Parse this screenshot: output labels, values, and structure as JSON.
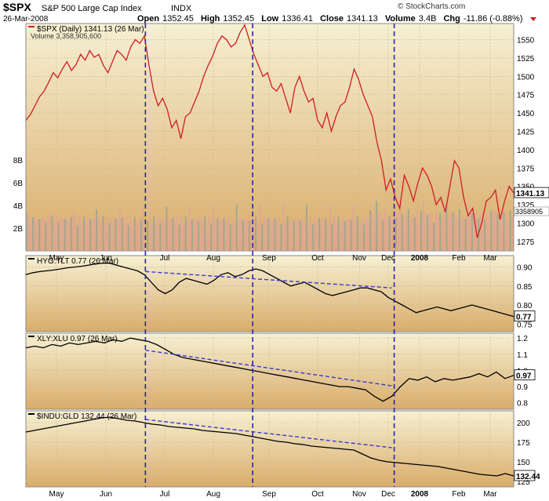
{
  "header": {
    "symbol": "$SPX",
    "name": "S&P 500 Large Cap Index",
    "exchange": "INDX",
    "date": "26-Mar-2008",
    "open_label": "Open",
    "open": "1352.45",
    "high_label": "High",
    "high": "1352.45",
    "low_label": "Low",
    "low": "1336.41",
    "close_label": "Close",
    "close": "1341.13",
    "volume_label": "Volume",
    "volume": "3.4B",
    "chg_label": "Chg",
    "chg": "-11.86 (-0.88%)",
    "watermark": "© StockCharts.com"
  },
  "colors": {
    "panel_bg_top": "#f6f0d3",
    "panel_bg_bottom": "#d9ac6a",
    "price_line": "#d01c24",
    "ratio_line": "#000000",
    "trend_line": "#3a3ad0",
    "vertical_marker": "#2a20b8",
    "vol_up": "#9aa39a",
    "vol_down": "#e0a59a"
  },
  "x_axis": {
    "months": [
      "May",
      "Jun",
      "Jul",
      "Aug",
      "Sep",
      "Oct",
      "Nov",
      "Dec",
      "2008",
      "Feb",
      "Mar"
    ]
  },
  "chart_data": [
    {
      "type": "line",
      "title": "$SPX (Daily) 1341.13 (26 Mar)",
      "volume_legend": "Volume 3,358,905,600",
      "last_value_label": "1341.13",
      "volume_last_label": "3358905",
      "ylim": [
        1262,
        1572
      ],
      "yticks": [
        1275,
        1300,
        1325,
        1350,
        1375,
        1400,
        1425,
        1450,
        1475,
        1500,
        1525,
        1550
      ],
      "volume_ticks": [
        "2B",
        "4B",
        "6B",
        "8B"
      ],
      "volume_tick_values": [
        2,
        4,
        6,
        8
      ],
      "volume_lim": [
        0,
        10.5
      ],
      "series": [
        {
          "name": "$SPX",
          "values": [
            1440,
            1448,
            1460,
            1472,
            1480,
            1492,
            1505,
            1498,
            1510,
            1520,
            1508,
            1516,
            1530,
            1522,
            1535,
            1526,
            1530,
            1515,
            1505,
            1520,
            1535,
            1530,
            1522,
            1540,
            1550,
            1545,
            1555,
            1515,
            1480,
            1460,
            1470,
            1455,
            1430,
            1440,
            1415,
            1445,
            1450,
            1465,
            1480,
            1500,
            1515,
            1528,
            1545,
            1555,
            1550,
            1540,
            1545,
            1560,
            1570,
            1550,
            1530,
            1515,
            1500,
            1505,
            1485,
            1480,
            1490,
            1470,
            1450,
            1485,
            1500,
            1480,
            1465,
            1470,
            1440,
            1430,
            1450,
            1425,
            1445,
            1460,
            1465,
            1485,
            1510,
            1495,
            1475,
            1460,
            1445,
            1410,
            1385,
            1345,
            1360,
            1335,
            1320,
            1365,
            1350,
            1330,
            1355,
            1375,
            1365,
            1350,
            1325,
            1335,
            1315,
            1350,
            1385,
            1375,
            1335,
            1310,
            1320,
            1280,
            1300,
            1330,
            1335,
            1345,
            1305,
            1330,
            1350,
            1341
          ]
        }
      ]
    },
    {
      "type": "line",
      "title": "HYG:TLT 0.77 (26 Mar)",
      "last_value_label": "0.77",
      "ylim": [
        0.73,
        0.93
      ],
      "yticks": [
        0.75,
        0.8,
        0.85,
        0.9
      ],
      "ytick_labels": [
        "0.75",
        "0.80",
        "0.85",
        "0.90"
      ],
      "series": [
        {
          "name": "HYG:TLT",
          "values": [
            0.88,
            0.885,
            0.888,
            0.89,
            0.892,
            0.895,
            0.898,
            0.9,
            0.902,
            0.905,
            0.908,
            0.91,
            0.91,
            0.905,
            0.9,
            0.895,
            0.89,
            0.88,
            0.86,
            0.84,
            0.83,
            0.84,
            0.86,
            0.87,
            0.865,
            0.86,
            0.855,
            0.865,
            0.88,
            0.885,
            0.875,
            0.88,
            0.89,
            0.895,
            0.89,
            0.88,
            0.87,
            0.86,
            0.85,
            0.855,
            0.86,
            0.85,
            0.84,
            0.83,
            0.825,
            0.83,
            0.835,
            0.84,
            0.845,
            0.845,
            0.84,
            0.835,
            0.82,
            0.81,
            0.8,
            0.79,
            0.78,
            0.785,
            0.79,
            0.795,
            0.79,
            0.785,
            0.79,
            0.795,
            0.8,
            0.795,
            0.79,
            0.785,
            0.78,
            0.775,
            0.77
          ]
        }
      ],
      "trend": {
        "x": [
          0.245,
          0.75
        ],
        "values": [
          0.888,
          0.845
        ]
      }
    },
    {
      "type": "line",
      "title": "XLY:XLU 0.97 (26 Mar)",
      "last_value_label": "0.97",
      "ylim": [
        0.76,
        1.23
      ],
      "yticks": [
        0.8,
        0.9,
        1.0,
        1.1,
        1.2
      ],
      "ytick_labels": [
        "0.8",
        "0.9",
        "1.0",
        "1.1",
        "1.2"
      ],
      "series": [
        {
          "name": "XLY:XLU",
          "values": [
            1.14,
            1.15,
            1.14,
            1.16,
            1.15,
            1.17,
            1.16,
            1.17,
            1.18,
            1.17,
            1.19,
            1.18,
            1.2,
            1.19,
            1.18,
            1.16,
            1.13,
            1.1,
            1.08,
            1.07,
            1.06,
            1.05,
            1.04,
            1.03,
            1.02,
            1.01,
            1.0,
            0.99,
            0.98,
            0.97,
            0.96,
            0.95,
            0.94,
            0.93,
            0.92,
            0.91,
            0.9,
            0.9,
            0.89,
            0.88,
            0.84,
            0.81,
            0.84,
            0.9,
            0.95,
            0.94,
            0.96,
            0.93,
            0.95,
            0.94,
            0.95,
            0.96,
            0.98,
            0.96,
            0.99,
            0.95,
            0.97
          ]
        }
      ],
      "trend": {
        "x": [
          0.245,
          0.75
        ],
        "values": [
          1.125,
          0.905
        ]
      }
    },
    {
      "type": "line",
      "title": "$INDU:GLD 132.44 (26 Mar)",
      "last_value_label": "132.44",
      "ylim": [
        118,
        215
      ],
      "yticks": [
        125,
        150,
        175,
        200
      ],
      "ytick_labels": [
        "125",
        "150",
        "175",
        "200"
      ],
      "series": [
        {
          "name": "$INDU:GLD",
          "values": [
            188,
            190,
            192,
            194,
            196,
            198,
            200,
            202,
            204,
            206,
            207,
            205,
            203,
            202,
            200,
            198,
            197,
            195,
            194,
            193,
            192,
            190,
            189,
            188,
            187,
            186,
            184,
            182,
            180,
            178,
            176,
            175,
            173,
            172,
            170,
            169,
            168,
            167,
            166,
            165,
            160,
            155,
            152,
            150,
            149,
            148,
            147,
            146,
            145,
            144,
            142,
            140,
            138,
            136,
            134,
            133,
            132,
            135,
            132
          ]
        }
      ],
      "trend": {
        "x": [
          0.245,
          0.75
        ],
        "values": [
          204,
          168
        ]
      }
    }
  ],
  "vertical_markers": [
    0.245,
    0.465,
    0.755
  ]
}
